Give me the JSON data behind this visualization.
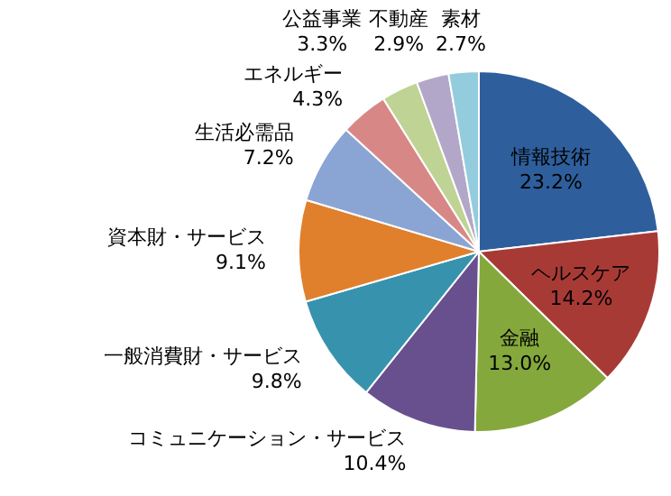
{
  "chart_data": {
    "type": "pie",
    "categories": [
      "情報技術",
      "ヘルスケア",
      "金融",
      "コミュニケーション・サービス",
      "一般消費財・サービス",
      "資本財・サービス",
      "生活必需品",
      "エネルギー",
      "公益事業",
      "不動産",
      "素材"
    ],
    "values": [
      23.2,
      14.2,
      13.0,
      10.4,
      9.8,
      9.1,
      7.2,
      4.3,
      3.3,
      2.9,
      2.7
    ],
    "value_labels": [
      "23.2%",
      "14.2%",
      "13.0%",
      "10.4%",
      "9.8%",
      "9.1%",
      "7.2%",
      "4.3%",
      "3.3%",
      "2.9%",
      "2.7%"
    ],
    "colors": [
      "#2e5f9c",
      "#a83a36",
      "#85a83c",
      "#68508e",
      "#3793ad",
      "#e0802c",
      "#8aa5d4",
      "#d78886",
      "#bfd394",
      "#b3a7c9",
      "#93cddd"
    ],
    "legend": false
  }
}
